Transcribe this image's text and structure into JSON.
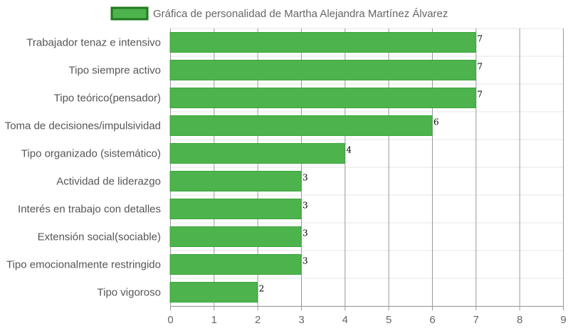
{
  "chart_data": {
    "type": "bar",
    "orientation": "horizontal",
    "title": "",
    "legend": {
      "position": "top",
      "entries": [
        "Gráfica de personalidad de Martha Alejandra Martínez Álvarez"
      ]
    },
    "categories": [
      "Trabajador tenaz e intensivo",
      "Tipo siempre activo",
      "Tipo teórico(pensador)",
      "Toma de decisiones/impulsividad",
      "Tipo organizado (sistemático)",
      "Actividad de liderazgo",
      "Interés en trabajo con detalles",
      "Extensión social(sociable)",
      "Tipo emocionalmente restringido",
      "Tipo vigoroso"
    ],
    "series": [
      {
        "name": "Gráfica de personalidad de Martha Alejandra Martínez Álvarez",
        "values": [
          7,
          7,
          7,
          6,
          4,
          3,
          3,
          3,
          3,
          2
        ]
      }
    ],
    "value_labels": [
      "7",
      "7",
      "7",
      "6",
      "4",
      "3",
      "3",
      "3",
      "3",
      "2"
    ],
    "x_ticks": [
      "0",
      "1",
      "2",
      "3",
      "4",
      "5",
      "6",
      "7",
      "8",
      "9"
    ],
    "xlim": [
      0,
      9
    ],
    "grid": true,
    "colors": {
      "bar_fill": "#4db34d",
      "bar_border": "#3ca63c",
      "legend_fill": "#4db34d",
      "legend_border": "#1f7a1f",
      "grid_vertical": "#999999",
      "grid_horizontal": "#e6e6e6"
    }
  }
}
